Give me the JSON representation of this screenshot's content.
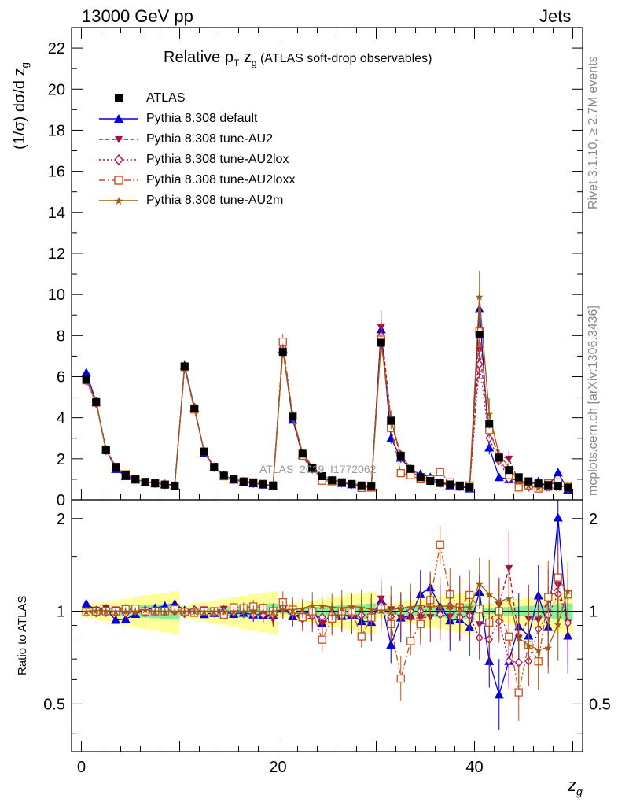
{
  "header": {
    "left": "13000 GeV pp",
    "right": "Jets"
  },
  "side_labels": {
    "rivet": "Rivet 3.1.10, ≥ 2.7M events",
    "mcplots": "mcplots.cern.ch [arXiv:1306.3436]"
  },
  "title_main": "Relative p",
  "title_sub_T": "T",
  "title_z": " z",
  "title_sub_g": "g",
  "title_rest": " (ATLAS soft-drop observables)",
  "ylabel_top": "(1/σ) dσ/d z",
  "ylabel_top_sub": "g",
  "ylabel_bottom": "Ratio to ATLAS",
  "xlabel": "z",
  "xlabel_sub": "g",
  "watermark": "ATLAS_2019_I1772062",
  "legend": [
    {
      "name": "ATLAS",
      "color": "#000000",
      "marker": "square-filled",
      "line": "none"
    },
    {
      "name": "Pythia 8.308 default",
      "color": "#0000dd",
      "marker": "triangle-up",
      "line": "solid"
    },
    {
      "name": "Pythia 8.308 tune-AU2",
      "color": "#a0104a",
      "marker": "triangle-down",
      "line": "dashed"
    },
    {
      "name": "Pythia 8.308 tune-AU2lox",
      "color": "#b01060",
      "marker": "diamond-open",
      "line": "dotted"
    },
    {
      "name": "Pythia 8.308 tune-AU2loxx",
      "color": "#c8501a",
      "marker": "square-open",
      "line": "dashdot"
    },
    {
      "name": "Pythia 8.308 tune-AU2m",
      "color": "#a05a10",
      "marker": "star",
      "line": "solid"
    }
  ],
  "chart_data": {
    "type": "scatter",
    "xlim": [
      -1,
      51
    ],
    "ylim_top": [
      0,
      23
    ],
    "ylim_bottom": [
      0.35,
      2.3
    ],
    "ticks_top": [
      "0",
      "2",
      "4",
      "6",
      "8",
      "10",
      "12",
      "14",
      "16",
      "18",
      "20",
      "22"
    ],
    "ticks_bottom": [
      "0.5",
      "1",
      "2"
    ],
    "ticks_x": [
      "0",
      "20",
      "40"
    ],
    "x": [
      0.5,
      1.5,
      2.5,
      3.5,
      4.5,
      5.5,
      6.5,
      7.5,
      8.5,
      9.5,
      10.5,
      11.5,
      12.5,
      13.5,
      14.5,
      15.5,
      16.5,
      17.5,
      18.5,
      19.5,
      20.5,
      21.5,
      22.5,
      23.5,
      24.5,
      25.5,
      26.5,
      27.5,
      28.5,
      29.5,
      30.5,
      31.5,
      32.5,
      33.5,
      34.5,
      35.5,
      36.5,
      37.5,
      38.5,
      39.5,
      40.5,
      41.5,
      42.5,
      43.5,
      44.5,
      45.5,
      46.5,
      47.5,
      48.5,
      49.5
    ],
    "atlas": [
      5.85,
      4.75,
      2.42,
      1.6,
      1.22,
      1.0,
      0.87,
      0.8,
      0.74,
      0.68,
      6.5,
      4.45,
      2.35,
      1.6,
      1.18,
      1.0,
      0.88,
      0.82,
      0.76,
      0.7,
      7.2,
      4.05,
      2.25,
      1.55,
      1.15,
      0.95,
      0.85,
      0.77,
      0.7,
      0.65,
      7.65,
      3.85,
      2.15,
      1.5,
      1.1,
      0.92,
      0.82,
      0.75,
      0.68,
      0.62,
      8.05,
      3.7,
      2.05,
      1.45,
      1.1,
      0.9,
      0.8,
      0.72,
      0.66,
      0.6
    ],
    "series": [
      {
        "name": "Pythia 8.308 default",
        "values": [
          6.2,
          4.78,
          2.45,
          1.5,
          1.15,
          0.98,
          0.88,
          0.82,
          0.77,
          0.72,
          6.55,
          4.5,
          2.3,
          1.58,
          1.17,
          0.98,
          0.87,
          0.8,
          0.74,
          0.68,
          7.35,
          3.9,
          2.2,
          1.55,
          1.05,
          0.93,
          0.82,
          0.75,
          0.65,
          0.6,
          8.3,
          3.0,
          2.05,
          1.45,
          1.25,
          1.1,
          0.85,
          0.7,
          0.64,
          0.55,
          9.3,
          2.55,
          1.1,
          1.0,
          0.98,
          0.75,
          0.9,
          0.64,
          1.33,
          0.5
        ]
      },
      {
        "name": "Pythia 8.308 tune-AU2",
        "values": [
          5.9,
          4.8,
          2.48,
          1.62,
          1.25,
          1.0,
          0.87,
          0.8,
          0.74,
          0.68,
          6.45,
          4.4,
          2.38,
          1.6,
          1.2,
          0.98,
          0.88,
          0.82,
          0.74,
          0.66,
          7.3,
          4.0,
          2.1,
          1.48,
          1.05,
          0.9,
          0.82,
          0.74,
          0.67,
          0.62,
          8.4,
          3.9,
          2.05,
          1.42,
          1.05,
          0.88,
          0.8,
          0.72,
          0.7,
          0.6,
          7.3,
          3.4,
          2.15,
          2.0,
          0.9,
          0.85,
          0.75,
          0.78,
          0.8,
          0.55
        ]
      },
      {
        "name": "Pythia 8.308 tune-AU2lox",
        "values": [
          5.8,
          4.7,
          2.4,
          1.58,
          1.2,
          1.0,
          0.86,
          0.8,
          0.74,
          0.68,
          6.4,
          4.5,
          2.35,
          1.58,
          1.18,
          0.99,
          0.9,
          0.8,
          0.74,
          0.68,
          7.4,
          4.0,
          2.2,
          1.5,
          1.1,
          0.93,
          0.82,
          0.75,
          0.68,
          0.63,
          8.0,
          3.7,
          2.2,
          1.5,
          1.1,
          1.0,
          0.8,
          0.78,
          0.65,
          0.6,
          6.6,
          3.0,
          1.9,
          1.0,
          0.75,
          0.62,
          0.7,
          0.7,
          0.75,
          0.55
        ]
      },
      {
        "name": "Pythia 8.308 tune-AU2loxx",
        "values": [
          5.82,
          4.74,
          2.42,
          1.6,
          1.24,
          1.02,
          0.87,
          0.8,
          0.74,
          0.69,
          6.47,
          4.4,
          2.35,
          1.6,
          1.15,
          1.03,
          0.9,
          0.85,
          0.78,
          0.7,
          7.7,
          4.1,
          2.15,
          1.55,
          0.93,
          0.9,
          0.85,
          0.77,
          0.58,
          0.62,
          7.8,
          3.5,
          1.3,
          1.2,
          1.0,
          1.0,
          1.35,
          0.85,
          0.7,
          0.7,
          8.2,
          3.4,
          2.05,
          1.2,
          0.6,
          0.7,
          0.55,
          0.8,
          0.85,
          0.68
        ]
      },
      {
        "name": "Pythia 8.308 tune-AU2m",
        "values": [
          5.85,
          4.78,
          2.43,
          1.6,
          1.22,
          1.0,
          0.88,
          0.8,
          0.74,
          0.68,
          6.5,
          4.45,
          2.35,
          1.6,
          1.18,
          1.0,
          0.88,
          0.82,
          0.76,
          0.7,
          7.3,
          4.1,
          2.3,
          1.62,
          1.2,
          0.98,
          0.87,
          0.8,
          0.72,
          0.66,
          7.7,
          3.9,
          2.2,
          1.55,
          1.15,
          0.95,
          0.85,
          0.78,
          0.7,
          0.64,
          9.9,
          4.2,
          2.2,
          1.6,
          0.9,
          0.7,
          0.6,
          0.55,
          0.6,
          0.7
        ]
      }
    ]
  }
}
